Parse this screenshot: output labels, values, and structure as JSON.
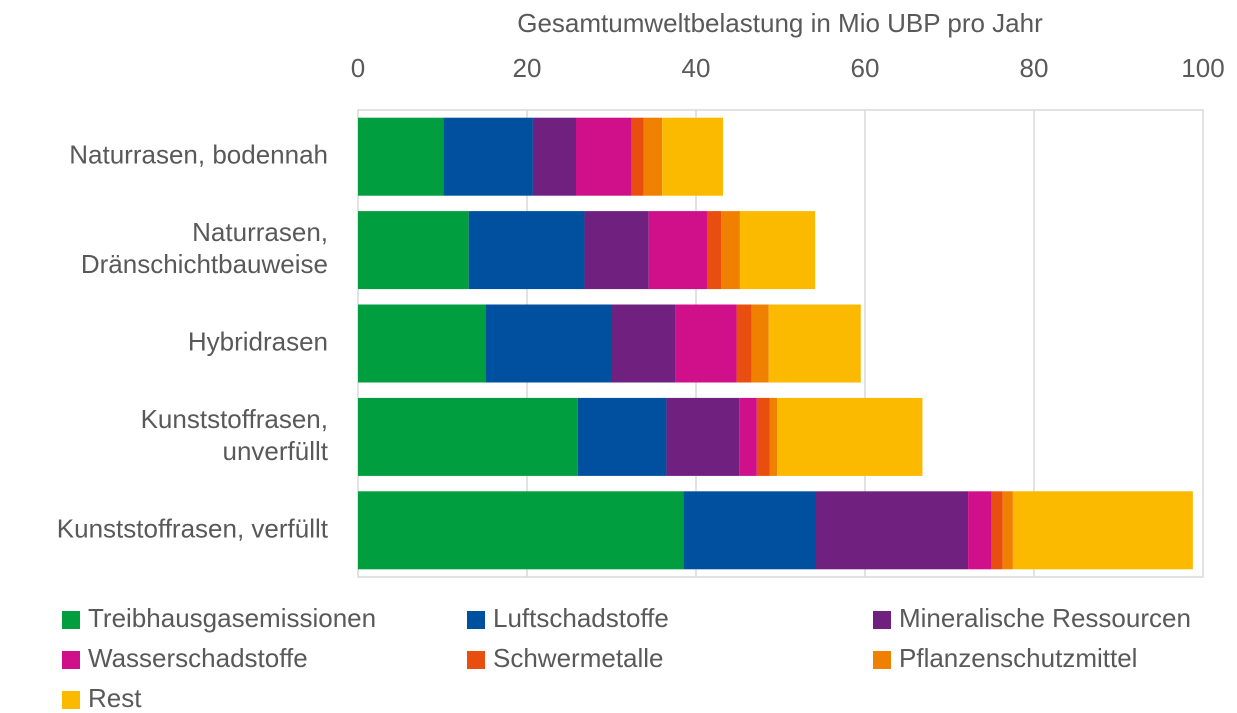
{
  "chart_data": {
    "type": "stacked-barh",
    "x_label": "Gesamtumweltbelastung in Mio UBP pro Jahr",
    "categories": [
      "Naturrasen, bodennah",
      "Naturrasen,\nDränschichtbauweise",
      "Hybridrasen",
      "Kunststoffrasen,\nunverfüllt",
      "Kunststoffrasen, verfüllt"
    ],
    "series": [
      {
        "name": "Treibhausgasemissionen",
        "color": "#009e3f",
        "values": [
          10.1,
          13.1,
          15.1,
          26.0,
          38.5
        ]
      },
      {
        "name": "Luftschadstoffe",
        "color": "#0050a0",
        "values": [
          10.6,
          13.7,
          14.9,
          10.5,
          15.7
        ]
      },
      {
        "name": "Mineralische Ressourcen",
        "color": "#70207f",
        "values": [
          5.1,
          7.6,
          7.6,
          8.6,
          18.0
        ]
      },
      {
        "name": "Wasserschadstoffe",
        "color": "#d0108a",
        "values": [
          6.6,
          6.9,
          7.2,
          2.1,
          2.8
        ]
      },
      {
        "name": "Schwermetalle",
        "color": "#e84e10",
        "values": [
          1.4,
          1.7,
          1.8,
          1.5,
          1.3
        ]
      },
      {
        "name": "Pflanzenschutzmittel",
        "color": "#f08000",
        "values": [
          2.2,
          2.2,
          2.0,
          0.9,
          1.2
        ]
      },
      {
        "name": "Rest",
        "color": "#fbb900",
        "values": [
          7.2,
          8.9,
          10.9,
          17.2,
          21.3
        ]
      }
    ],
    "xlim": [
      0,
      100
    ],
    "xticks": [
      0,
      20,
      40,
      60,
      80,
      100
    ],
    "grid": true,
    "legend": "bottom"
  }
}
